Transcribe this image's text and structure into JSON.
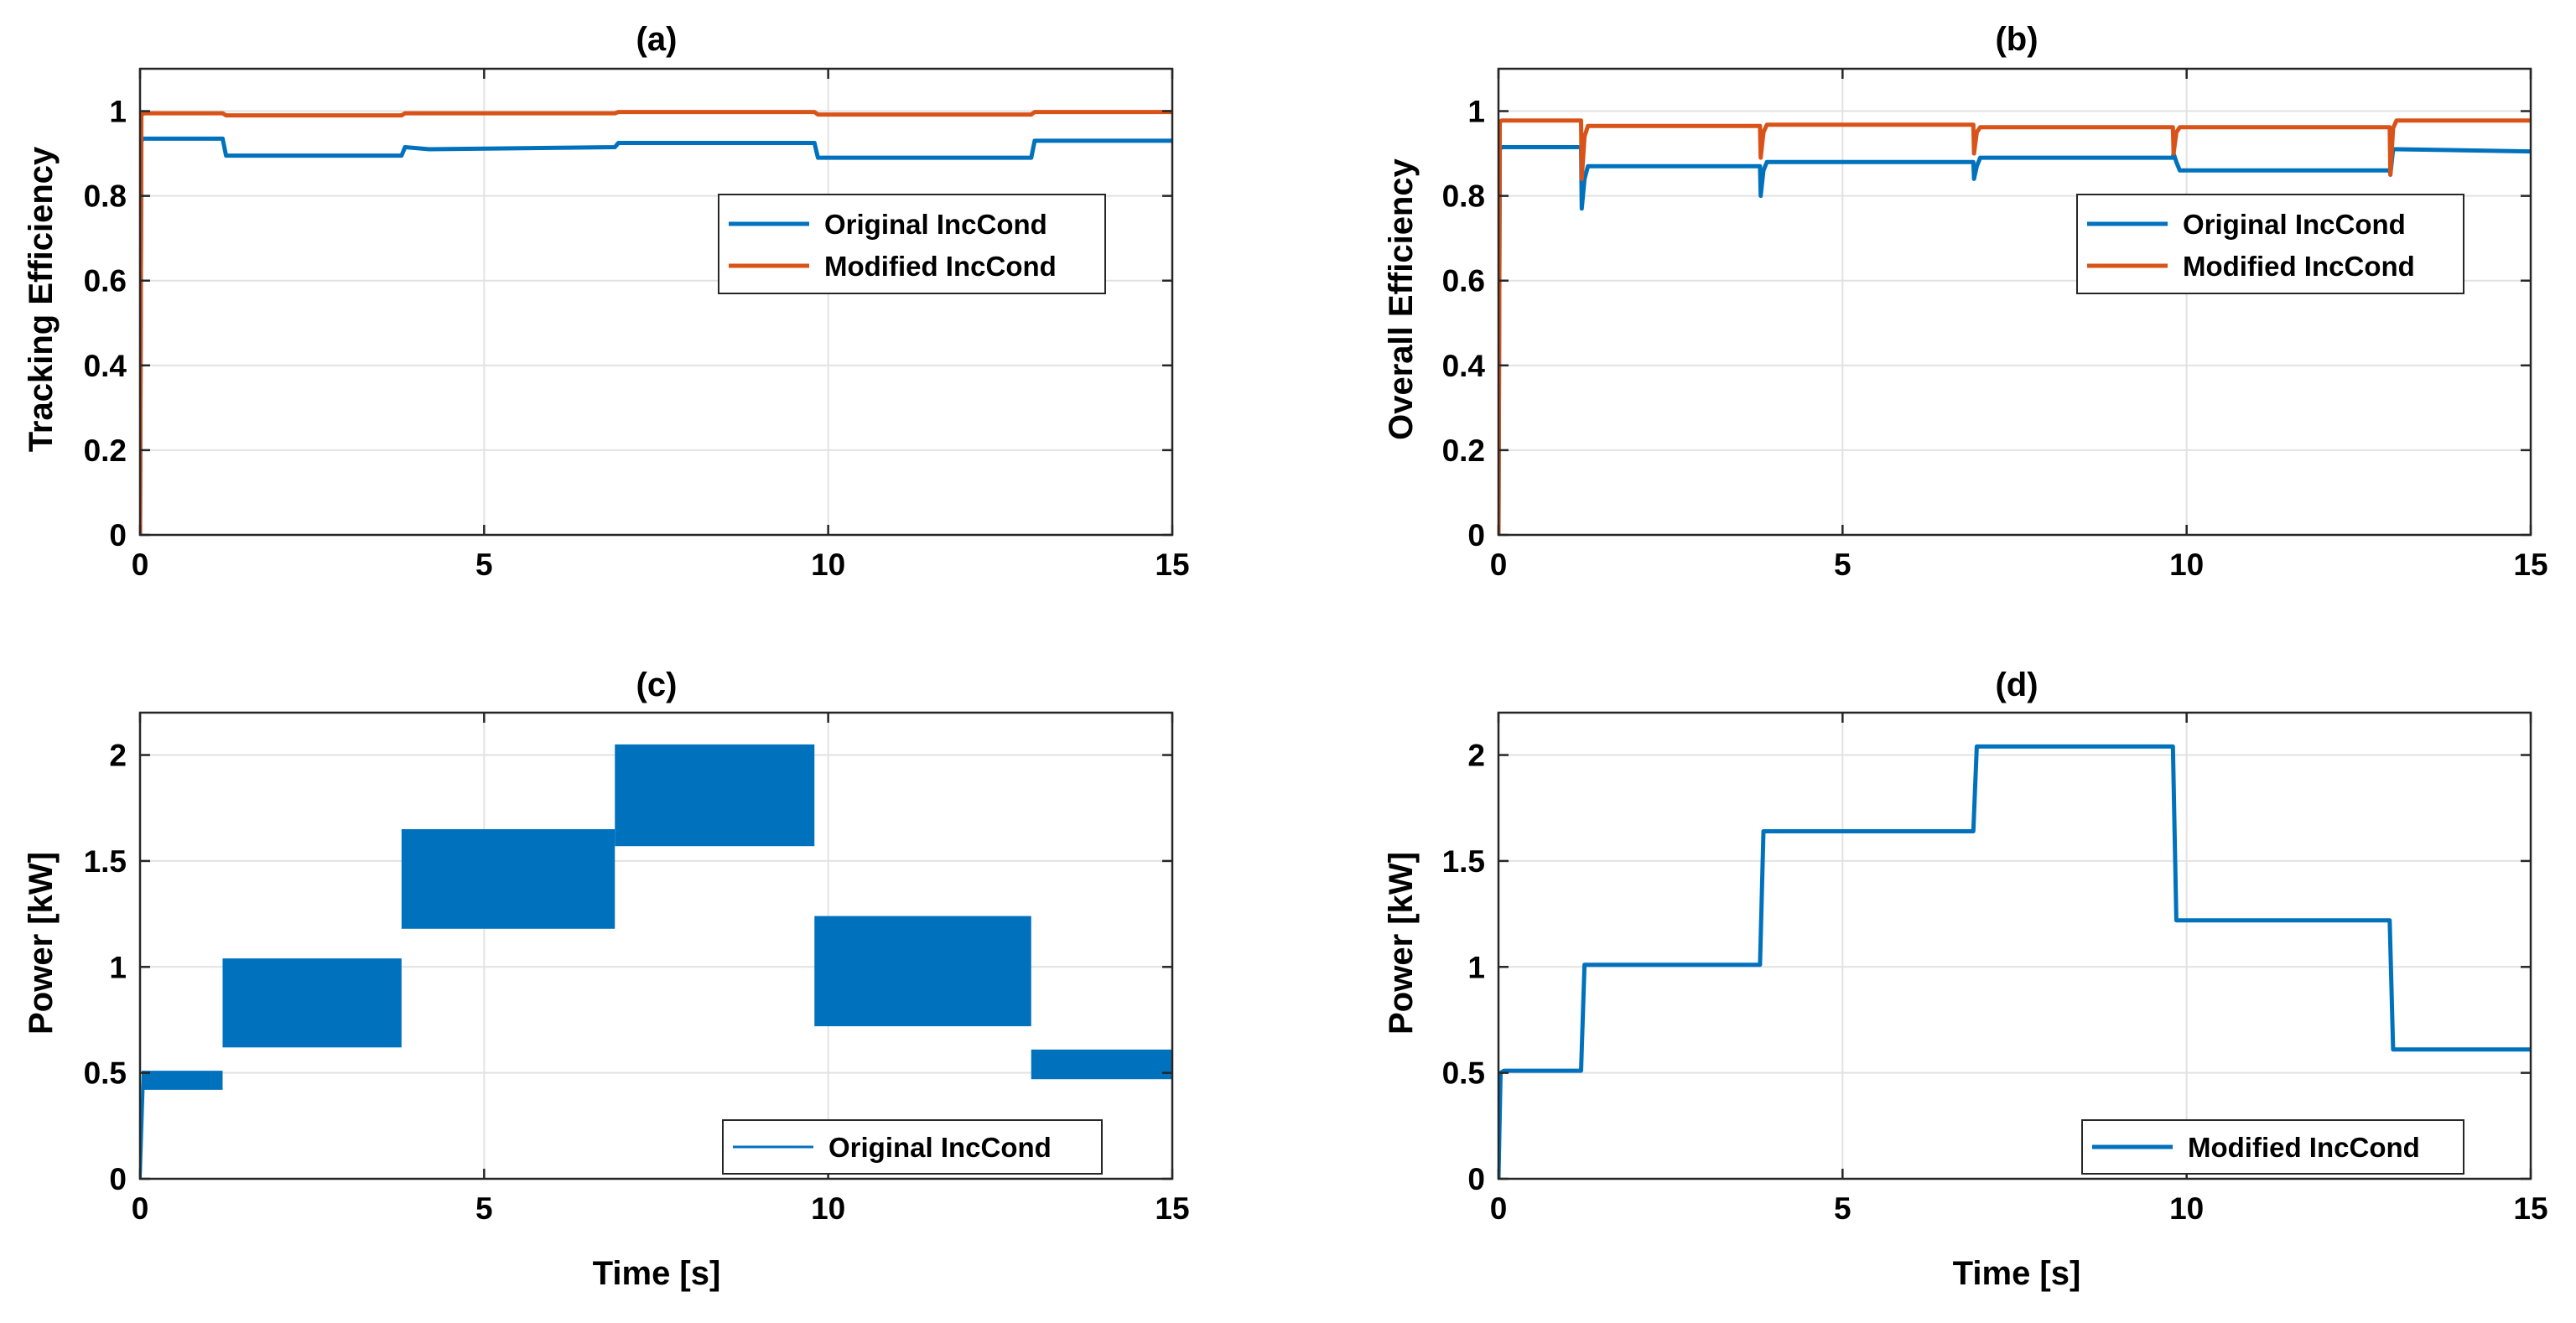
{
  "colors": {
    "original": "#0072BD",
    "modified": "#D95319"
  },
  "chart_data": [
    {
      "id": "a",
      "type": "line",
      "title": "(a)",
      "xlabel": "",
      "ylabel": "Tracking Efficiency",
      "xlim": [
        0,
        15
      ],
      "ylim": [
        0,
        1.1
      ],
      "xticks": [
        0,
        5,
        10,
        15
      ],
      "yticks": [
        0,
        0.2,
        0.4,
        0.6,
        0.8,
        1
      ],
      "xtick_labels": [
        "0",
        "5",
        "10",
        "15"
      ],
      "ytick_labels": [
        "0",
        "0.2",
        "0.4",
        "0.6",
        "0.8",
        "1"
      ],
      "grid": true,
      "legend_position": "center-right",
      "series": [
        {
          "name": "Original IncCond",
          "color": "#0072BD",
          "x": [
            0,
            0.02,
            0.05,
            1.2,
            1.25,
            3.8,
            3.85,
            4.2,
            6.9,
            6.95,
            9.8,
            9.85,
            12.95,
            13.0,
            15
          ],
          "y": [
            0,
            0.93,
            0.935,
            0.935,
            0.895,
            0.895,
            0.915,
            0.91,
            0.915,
            0.925,
            0.925,
            0.89,
            0.89,
            0.93,
            0.93
          ]
        },
        {
          "name": "Modified IncCond",
          "color": "#D95319",
          "x": [
            0,
            0.02,
            0.05,
            1.2,
            1.25,
            3.8,
            3.85,
            6.9,
            6.95,
            9.8,
            9.85,
            12.95,
            13.0,
            15
          ],
          "y": [
            0,
            0.99,
            0.995,
            0.995,
            0.99,
            0.99,
            0.995,
            0.995,
            0.998,
            0.998,
            0.992,
            0.992,
            0.998,
            0.998
          ]
        }
      ]
    },
    {
      "id": "b",
      "type": "line",
      "title": "(b)",
      "xlabel": "",
      "ylabel": "Overall Efficiency",
      "xlim": [
        0,
        15
      ],
      "ylim": [
        0,
        1.1
      ],
      "xticks": [
        0,
        5,
        10,
        15
      ],
      "yticks": [
        0,
        0.2,
        0.4,
        0.6,
        0.8,
        1
      ],
      "xtick_labels": [
        "0",
        "5",
        "10",
        "15"
      ],
      "ytick_labels": [
        "0",
        "0.2",
        "0.4",
        "0.6",
        "0.8",
        "1"
      ],
      "grid": true,
      "legend_position": "center-right",
      "series": [
        {
          "name": "Original IncCond",
          "color": "#0072BD",
          "x": [
            0,
            0.02,
            0.05,
            1.2,
            1.21,
            1.25,
            1.3,
            3.8,
            3.81,
            3.85,
            3.9,
            6.9,
            6.91,
            6.95,
            7.0,
            9.8,
            9.81,
            9.85,
            9.9,
            12.95,
            12.96,
            13.0,
            13.05,
            15
          ],
          "y": [
            0,
            0.91,
            0.915,
            0.915,
            0.77,
            0.84,
            0.87,
            0.87,
            0.8,
            0.86,
            0.88,
            0.88,
            0.84,
            0.87,
            0.89,
            0.89,
            0.9,
            0.88,
            0.86,
            0.86,
            0.85,
            0.91,
            0.91,
            0.905
          ]
        },
        {
          "name": "Modified IncCond",
          "color": "#D95319",
          "x": [
            0,
            0.02,
            0.05,
            1.2,
            1.21,
            1.25,
            1.3,
            3.8,
            3.81,
            3.85,
            3.9,
            6.9,
            6.91,
            6.95,
            7.0,
            9.8,
            9.81,
            9.85,
            9.9,
            12.95,
            12.96,
            13.0,
            13.05,
            15
          ],
          "y": [
            0,
            0.975,
            0.978,
            0.978,
            0.84,
            0.94,
            0.965,
            0.965,
            0.89,
            0.95,
            0.968,
            0.968,
            0.9,
            0.95,
            0.962,
            0.962,
            0.9,
            0.95,
            0.962,
            0.962,
            0.85,
            0.96,
            0.978,
            0.978
          ]
        }
      ]
    },
    {
      "id": "c",
      "type": "line",
      "title": "(c)",
      "xlabel": "Time [s]",
      "ylabel": "Power [kW]",
      "xlim": [
        0,
        15
      ],
      "ylim": [
        0,
        2.2
      ],
      "xticks": [
        0,
        5,
        10,
        15
      ],
      "yticks": [
        0,
        0.5,
        1,
        1.5,
        2
      ],
      "xtick_labels": [
        "0",
        "5",
        "10",
        "15"
      ],
      "ytick_labels": [
        "0",
        "0.5",
        "1",
        "1.5",
        "2"
      ],
      "grid": true,
      "legend_position": "bottom-right",
      "series": [
        {
          "name": "Original IncCond",
          "color": "#0072BD",
          "x_start": [
            0.05,
            1.2,
            3.8,
            6.9,
            9.8,
            12.95
          ],
          "x_end": [
            1.2,
            3.8,
            6.9,
            9.8,
            12.95,
            15
          ],
          "upper": [
            0.51,
            1.04,
            1.65,
            2.05,
            1.24,
            0.61
          ],
          "lower": [
            0.42,
            0.62,
            1.18,
            1.57,
            0.72,
            0.47
          ]
        }
      ]
    },
    {
      "id": "d",
      "type": "line",
      "title": "(d)",
      "xlabel": "Time [s]",
      "ylabel": "Power [kW]",
      "xlim": [
        0,
        15
      ],
      "ylim": [
        0,
        2.2
      ],
      "xticks": [
        0,
        5,
        10,
        15
      ],
      "yticks": [
        0,
        0.5,
        1,
        1.5,
        2
      ],
      "xtick_labels": [
        "0",
        "5",
        "10",
        "15"
      ],
      "ytick_labels": [
        "0",
        "0.5",
        "1",
        "1.5",
        "2"
      ],
      "grid": true,
      "legend_position": "bottom-right",
      "series": [
        {
          "name": "Modified IncCond",
          "color": "#0072BD",
          "x": [
            0,
            0.03,
            0.08,
            1.2,
            1.25,
            3.8,
            3.85,
            6.9,
            6.95,
            9.8,
            9.85,
            12.95,
            13.0,
            15
          ],
          "y": [
            0,
            0.5,
            0.51,
            0.51,
            1.01,
            1.01,
            1.64,
            1.64,
            2.04,
            2.04,
            1.22,
            1.22,
            0.61,
            0.61
          ]
        }
      ]
    }
  ]
}
